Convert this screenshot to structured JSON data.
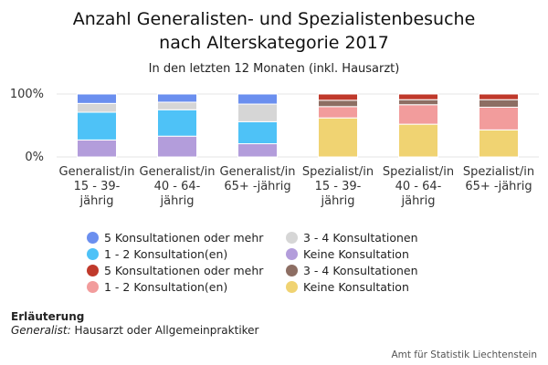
{
  "title_line1": "Anzahl Generalisten- und Spezialistenbesuche",
  "title_line2": "nach Alterskategorie 2017",
  "subtitle": "In den letzten 12 Monaten (inkl. Hausarzt)",
  "note": {
    "heading": "Erläuterung",
    "term": "Generalist:",
    "definition": " Hausarzt oder Allgemeinpraktiker"
  },
  "credits": "Amt für Statistik Liechtenstein",
  "chart_data": {
    "type": "bar",
    "stacked": true,
    "percent": true,
    "categories": [
      [
        "Generalist/in",
        "15 - 39-",
        "jährig"
      ],
      [
        "Generalist/in",
        "40 - 64-",
        "jährig"
      ],
      [
        "Generalist/in",
        "65+ -jährig"
      ],
      [
        "Spezialist/in",
        "15 - 39-",
        "jährig"
      ],
      [
        "Spezialist/in",
        "40 - 64-",
        "jährig"
      ],
      [
        "Spezialist/in",
        "65+ -jährig"
      ]
    ],
    "y_ticks": [
      "0%",
      "100%"
    ],
    "ylim": [
      0,
      100
    ],
    "grid": true,
    "legend_position": "bottom",
    "series": [
      {
        "name": "5 Konsultationen oder mehr",
        "color": "#6b8fef",
        "values": [
          15,
          13,
          16,
          null,
          null,
          null
        ]
      },
      {
        "name": "1 - 2 Konsultation(en)",
        "color": "#4ec2f7",
        "values": [
          44,
          42,
          35,
          null,
          null,
          null
        ]
      },
      {
        "name": "5 Konsultationen oder mehr",
        "color": "#c0392b",
        "values": [
          null,
          null,
          null,
          10,
          9,
          9
        ]
      },
      {
        "name": "1 - 2 Konsultation(en)",
        "color": "#f29c9c",
        "values": [
          null,
          null,
          null,
          18,
          31,
          36
        ]
      },
      {
        "name": "3 - 4 Konsultationen",
        "color": "#d6d6d6",
        "values": [
          14,
          12,
          28,
          null,
          null,
          null
        ]
      },
      {
        "name": "Keine Konsultation",
        "color": "#b39ddb",
        "values": [
          27,
          33,
          21,
          null,
          null,
          null
        ]
      },
      {
        "name": "3 - 4 Konsultationen",
        "color": "#8d6e63",
        "values": [
          null,
          null,
          null,
          10,
          8,
          12
        ]
      },
      {
        "name": "Keine Konsultation",
        "color": "#f0d372",
        "values": [
          null,
          null,
          null,
          62,
          52,
          43
        ]
      }
    ],
    "stack_order_top_to_bottom": [
      "5 Konsultationen oder mehr",
      "3 - 4 Konsultationen",
      "1 - 2 Konsultation(en)",
      "Keine Konsultation"
    ]
  }
}
